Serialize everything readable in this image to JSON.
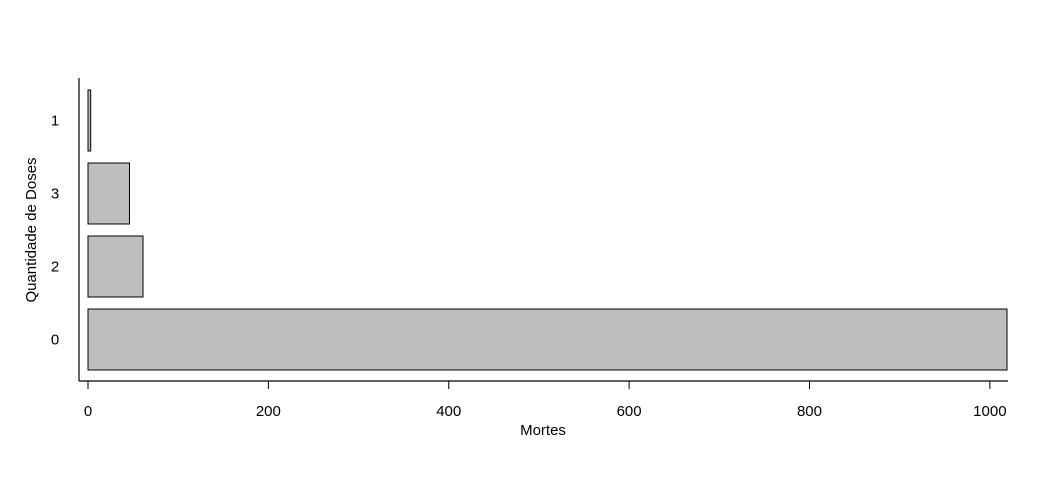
{
  "chart_data": {
    "type": "bar",
    "orientation": "horizontal",
    "categories": [
      "0",
      "2",
      "3",
      "1"
    ],
    "values": [
      1019,
      61,
      46,
      3
    ],
    "xlabel": "Mortes",
    "ylabel": "Quantidade de Doses",
    "xticks": [
      "0",
      "200",
      "400",
      "600",
      "800",
      "1000"
    ],
    "xlim": [
      0,
      1019
    ],
    "grid": false,
    "legend": "none",
    "bar_color": "#bebebe",
    "bar_edge_color": "#000000"
  }
}
